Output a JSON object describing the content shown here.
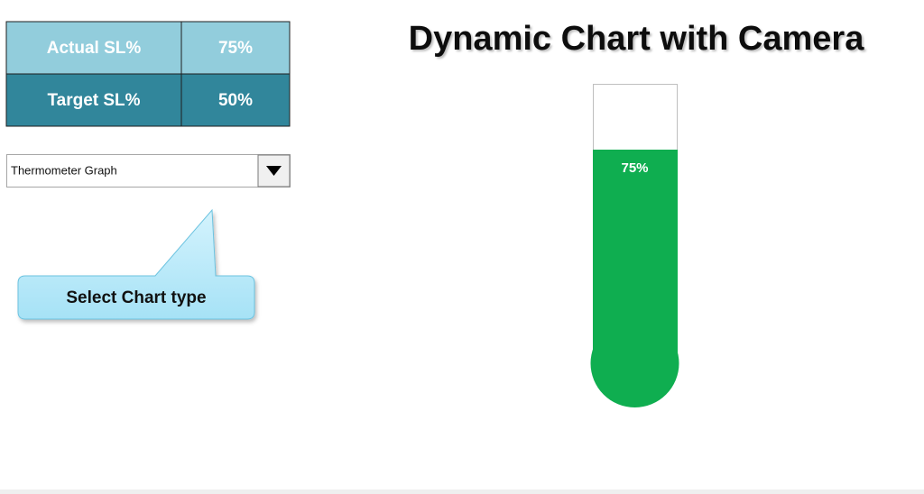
{
  "table": {
    "rows": [
      [
        "Actual SL%",
        "75%"
      ],
      [
        "Target SL%",
        "50%"
      ]
    ]
  },
  "dropdown": {
    "selected": "Thermometer Graph"
  },
  "callout": {
    "text": "Select Chart type"
  },
  "chart_data": {
    "type": "thermometer",
    "title": "Dynamic Chart with Camera",
    "values": [
      75
    ],
    "value_labels": [
      "75%"
    ],
    "color": "#0fae50",
    "ylim": [
      0,
      100
    ]
  }
}
